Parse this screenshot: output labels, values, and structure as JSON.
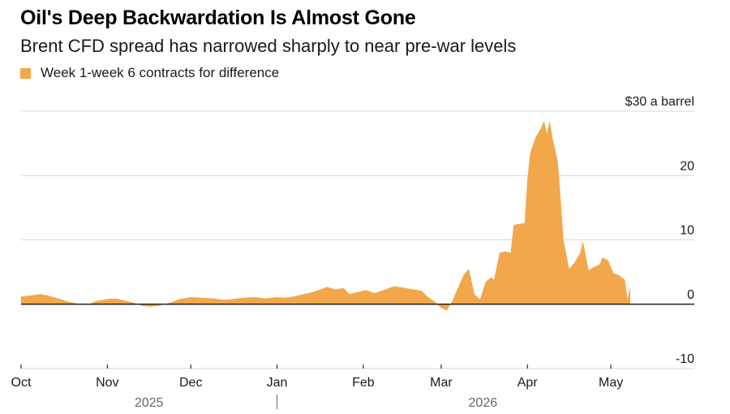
{
  "header": {
    "title": "Oil's Deep Backwardation Is Almost Gone",
    "subtitle": "Brent CFD spread has narrowed sharply to near pre-war levels"
  },
  "legend": {
    "label": "Week 1-week 6 contracts for difference",
    "color": "#f2a74b"
  },
  "colors": {
    "area": "#f2a74b",
    "gridline": "#d9d9d9",
    "zeroline": "#000000"
  },
  "chart_data": {
    "type": "area",
    "unit_label": "$30 a barrel",
    "ylim": [
      -10,
      30
    ],
    "y_ticks": [
      {
        "value": 30,
        "label": "$30 a barrel"
      },
      {
        "value": 20,
        "label": "20"
      },
      {
        "value": 10,
        "label": "10"
      },
      {
        "value": 0,
        "label": "0"
      },
      {
        "value": -10,
        "label": "-10"
      }
    ],
    "xlim": [
      "2025-10-01",
      "2026-05-31"
    ],
    "x_ticks": [
      {
        "date": "2025-10-01",
        "label": "Oct"
      },
      {
        "date": "2025-11-01",
        "label": "Nov"
      },
      {
        "date": "2025-12-01",
        "label": "Dec"
      },
      {
        "date": "2026-01-01",
        "label": "Jan"
      },
      {
        "date": "2026-02-01",
        "label": "Feb"
      },
      {
        "date": "2026-03-01",
        "label": "Mar"
      },
      {
        "date": "2026-04-01",
        "label": "Apr"
      },
      {
        "date": "2026-05-01",
        "label": "May"
      }
    ],
    "years": [
      {
        "label": "2025",
        "center_date": "2025-11-16"
      },
      {
        "label": "2026",
        "center_date": "2026-03-16"
      }
    ],
    "year_divider_date": "2026-01-01",
    "grid": true,
    "legend_position": "top-left",
    "series": [
      {
        "name": "Week 1-week 6 contracts for difference",
        "points": [
          [
            "2025-10-01",
            1.2
          ],
          [
            "2025-10-05",
            1.4
          ],
          [
            "2025-10-08",
            1.6
          ],
          [
            "2025-10-11",
            1.3
          ],
          [
            "2025-10-15",
            0.8
          ],
          [
            "2025-10-18",
            0.4
          ],
          [
            "2025-10-21",
            0.1
          ],
          [
            "2025-10-25",
            -0.1
          ],
          [
            "2025-10-28",
            0.5
          ],
          [
            "2025-11-01",
            0.8
          ],
          [
            "2025-11-04",
            0.9
          ],
          [
            "2025-11-07",
            0.6
          ],
          [
            "2025-11-10",
            0.3
          ],
          [
            "2025-11-14",
            -0.3
          ],
          [
            "2025-11-17",
            -0.4
          ],
          [
            "2025-11-20",
            -0.2
          ],
          [
            "2025-11-24",
            0.3
          ],
          [
            "2025-11-27",
            0.8
          ],
          [
            "2025-12-01",
            1.1
          ],
          [
            "2025-12-05",
            1.0
          ],
          [
            "2025-12-09",
            0.9
          ],
          [
            "2025-12-13",
            0.7
          ],
          [
            "2025-12-16",
            0.8
          ],
          [
            "2025-12-20",
            1.0
          ],
          [
            "2025-12-24",
            1.1
          ],
          [
            "2025-12-28",
            0.9
          ],
          [
            "2026-01-01",
            1.1
          ],
          [
            "2026-01-04",
            1.0
          ],
          [
            "2026-01-07",
            1.2
          ],
          [
            "2026-01-10",
            1.5
          ],
          [
            "2026-01-13",
            1.8
          ],
          [
            "2026-01-16",
            2.2
          ],
          [
            "2026-01-19",
            2.7
          ],
          [
            "2026-01-22",
            2.3
          ],
          [
            "2026-01-25",
            2.5
          ],
          [
            "2026-01-27",
            1.6
          ],
          [
            "2026-01-30",
            1.9
          ],
          [
            "2026-02-02",
            2.2
          ],
          [
            "2026-02-05",
            1.7
          ],
          [
            "2026-02-09",
            2.3
          ],
          [
            "2026-02-12",
            2.8
          ],
          [
            "2026-02-15",
            2.6
          ],
          [
            "2026-02-19",
            2.3
          ],
          [
            "2026-02-22",
            2.1
          ],
          [
            "2026-02-24",
            1.2
          ],
          [
            "2026-02-27",
            0.3
          ],
          [
            "2026-03-01",
            -0.6
          ],
          [
            "2026-03-03",
            -1.0
          ],
          [
            "2026-03-05",
            0.5
          ],
          [
            "2026-03-07",
            2.5
          ],
          [
            "2026-03-09",
            4.5
          ],
          [
            "2026-03-11",
            5.5
          ],
          [
            "2026-03-13",
            1.5
          ],
          [
            "2026-03-15",
            0.8
          ],
          [
            "2026-03-17",
            3.5
          ],
          [
            "2026-03-19",
            4.2
          ],
          [
            "2026-03-20",
            3.8
          ],
          [
            "2026-03-22",
            8.0
          ],
          [
            "2026-03-24",
            8.2
          ],
          [
            "2026-03-26",
            8.0
          ],
          [
            "2026-03-27",
            12.3
          ],
          [
            "2026-03-29",
            12.5
          ],
          [
            "2026-03-31",
            12.6
          ],
          [
            "2026-04-01",
            19.5
          ],
          [
            "2026-04-02",
            23.5
          ],
          [
            "2026-04-04",
            26.0
          ],
          [
            "2026-04-06",
            27.5
          ],
          [
            "2026-04-07",
            28.5
          ],
          [
            "2026-04-08",
            26.5
          ],
          [
            "2026-04-09",
            28.5
          ],
          [
            "2026-04-10",
            26.0
          ],
          [
            "2026-04-12",
            22.0
          ],
          [
            "2026-04-13",
            16.0
          ],
          [
            "2026-04-14",
            10.0
          ],
          [
            "2026-04-16",
            5.5
          ],
          [
            "2026-04-18",
            6.5
          ],
          [
            "2026-04-20",
            8.0
          ],
          [
            "2026-04-21",
            9.8
          ],
          [
            "2026-04-23",
            5.3
          ],
          [
            "2026-04-25",
            5.8
          ],
          [
            "2026-04-27",
            6.2
          ],
          [
            "2026-04-28",
            7.3
          ],
          [
            "2026-04-30",
            6.8
          ],
          [
            "2026-05-02",
            4.8
          ],
          [
            "2026-05-04",
            4.5
          ],
          [
            "2026-05-06",
            3.8
          ],
          [
            "2026-05-07",
            0.8
          ],
          [
            "2026-05-08",
            2.8
          ]
        ]
      }
    ]
  }
}
